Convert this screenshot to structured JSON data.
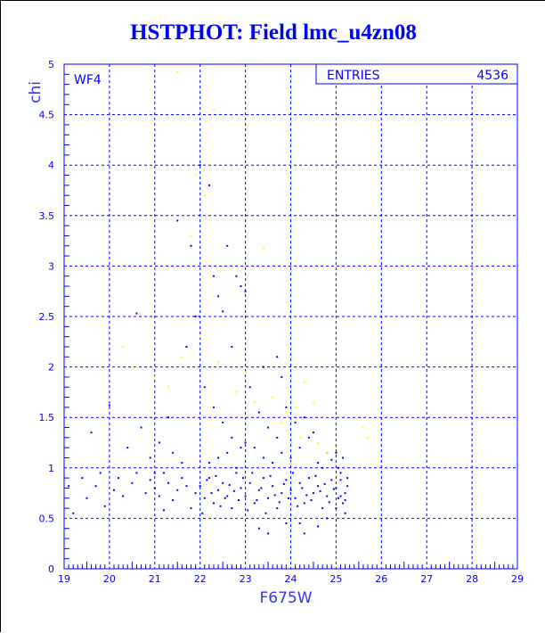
{
  "chart_data": {
    "type": "scatter",
    "title": "HSTPHOT: Field lmc_u4zn08",
    "xlabel": "F675W",
    "ylabel": "chi",
    "xlim": [
      19,
      29
    ],
    "ylim": [
      0,
      5
    ],
    "x_ticks": [
      "19",
      "20",
      "21",
      "22",
      "23",
      "24",
      "25",
      "26",
      "27",
      "28",
      "29"
    ],
    "y_ticks": [
      "0",
      "0.5",
      "1",
      "1.5",
      "2",
      "2.5",
      "3",
      "3.5",
      "4",
      "4.5",
      "5"
    ],
    "grid": true,
    "annotation": "WF4",
    "stats_box": {
      "label": "ENTRIES",
      "value": "4536"
    },
    "colors": {
      "main": "#0000ff",
      "highlight": "#ffff00"
    },
    "series": [
      {
        "color": "#0000ff",
        "points": [
          [
            19.1,
            0.82
          ],
          [
            19.2,
            0.55
          ],
          [
            19.4,
            0.9
          ],
          [
            19.5,
            0.7
          ],
          [
            19.6,
            1.35
          ],
          [
            19.7,
            0.82
          ],
          [
            19.8,
            0.95
          ],
          [
            19.9,
            0.62
          ],
          [
            20.0,
            1.62
          ],
          [
            20.1,
            0.78
          ],
          [
            20.2,
            0.9
          ],
          [
            20.3,
            0.72
          ],
          [
            20.4,
            1.2
          ],
          [
            20.5,
            0.85
          ],
          [
            20.6,
            0.95
          ],
          [
            20.7,
            1.4
          ],
          [
            20.8,
            0.75
          ],
          [
            20.9,
            0.88
          ],
          [
            20.6,
            2.53
          ],
          [
            20.9,
            1.1
          ],
          [
            21.0,
            0.8
          ],
          [
            21.1,
            0.72
          ],
          [
            21.2,
            0.95
          ],
          [
            21.3,
            0.85
          ],
          [
            21.4,
            0.68
          ],
          [
            21.5,
            0.78
          ],
          [
            21.6,
            0.9
          ],
          [
            21.7,
            0.82
          ],
          [
            21.8,
            0.6
          ],
          [
            21.9,
            0.75
          ],
          [
            21.1,
            1.25
          ],
          [
            21.3,
            1.5
          ],
          [
            21.5,
            3.45
          ],
          [
            21.7,
            2.2
          ],
          [
            21.8,
            3.2
          ],
          [
            21.9,
            2.5
          ],
          [
            21.2,
            0.58
          ],
          [
            21.6,
            1.05
          ],
          [
            21.4,
            1.15
          ],
          [
            21.0,
            0.95
          ],
          [
            22.0,
            4.0
          ],
          [
            22.2,
            3.8
          ],
          [
            22.3,
            2.9
          ],
          [
            22.4,
            2.7
          ],
          [
            22.5,
            2.55
          ],
          [
            22.6,
            3.2
          ],
          [
            22.7,
            2.2
          ],
          [
            22.8,
            2.9
          ],
          [
            22.9,
            2.8
          ],
          [
            23.0,
            2.75
          ],
          [
            22.1,
            1.8
          ],
          [
            22.3,
            1.6
          ],
          [
            22.5,
            1.45
          ],
          [
            22.7,
            1.3
          ],
          [
            22.9,
            1.2
          ],
          [
            22.2,
            1.05
          ],
          [
            22.4,
            1.1
          ],
          [
            22.6,
            1.15
          ],
          [
            22.8,
            1.0
          ],
          [
            23.0,
            1.25
          ],
          [
            22.0,
            0.82
          ],
          [
            22.1,
            0.7
          ],
          [
            22.2,
            0.9
          ],
          [
            22.3,
            0.65
          ],
          [
            22.4,
            0.78
          ],
          [
            22.5,
            0.85
          ],
          [
            22.6,
            0.72
          ],
          [
            22.7,
            0.6
          ],
          [
            22.8,
            0.95
          ],
          [
            22.9,
            0.8
          ],
          [
            22.05,
            0.55
          ],
          [
            22.15,
            0.88
          ],
          [
            22.25,
            0.75
          ],
          [
            22.35,
            0.92
          ],
          [
            22.45,
            0.62
          ],
          [
            22.55,
            0.7
          ],
          [
            22.65,
            0.83
          ],
          [
            22.75,
            0.77
          ],
          [
            22.85,
            0.68
          ],
          [
            22.95,
            0.9
          ],
          [
            23.0,
            0.72
          ],
          [
            23.1,
            0.85
          ],
          [
            23.2,
            0.65
          ],
          [
            23.3,
            0.78
          ],
          [
            23.4,
            0.9
          ],
          [
            23.5,
            0.7
          ],
          [
            23.6,
            0.82
          ],
          [
            23.7,
            0.6
          ],
          [
            23.8,
            0.75
          ],
          [
            23.9,
            0.88
          ],
          [
            23.05,
            0.58
          ],
          [
            23.15,
            0.95
          ],
          [
            23.25,
            0.68
          ],
          [
            23.35,
            0.8
          ],
          [
            23.45,
            0.55
          ],
          [
            23.55,
            0.92
          ],
          [
            23.65,
            0.73
          ],
          [
            23.75,
            0.66
          ],
          [
            23.85,
            0.84
          ],
          [
            23.95,
            0.7
          ],
          [
            23.1,
            1.8
          ],
          [
            23.3,
            1.55
          ],
          [
            23.5,
            1.4
          ],
          [
            23.7,
            1.3
          ],
          [
            23.9,
            1.6
          ],
          [
            23.2,
            1.2
          ],
          [
            23.4,
            1.1
          ],
          [
            23.6,
            1.05
          ],
          [
            23.8,
            1.15
          ],
          [
            23.3,
            0.4
          ],
          [
            23.5,
            0.35
          ],
          [
            23.9,
            0.45
          ],
          [
            23.7,
            2.1
          ],
          [
            23.4,
            2.0
          ],
          [
            23.8,
            1.9
          ],
          [
            24.0,
            0.78
          ],
          [
            24.1,
            0.7
          ],
          [
            24.2,
            0.85
          ],
          [
            24.3,
            0.65
          ],
          [
            24.4,
            0.9
          ],
          [
            24.5,
            0.75
          ],
          [
            24.6,
            0.82
          ],
          [
            24.7,
            0.6
          ],
          [
            24.8,
            0.72
          ],
          [
            24.9,
            0.88
          ],
          [
            24.05,
            0.95
          ],
          [
            24.15,
            0.62
          ],
          [
            24.25,
            0.8
          ],
          [
            24.35,
            0.73
          ],
          [
            24.45,
            0.68
          ],
          [
            24.55,
            0.92
          ],
          [
            24.65,
            0.77
          ],
          [
            24.75,
            0.84
          ],
          [
            24.85,
            0.66
          ],
          [
            24.95,
            0.79
          ],
          [
            24.0,
            1.1
          ],
          [
            24.2,
            1.2
          ],
          [
            24.4,
            1.3
          ],
          [
            24.6,
            1.05
          ],
          [
            24.8,
            1.15
          ],
          [
            24.1,
            1.45
          ],
          [
            24.3,
            1.5
          ],
          [
            24.5,
            1.35
          ],
          [
            24.7,
            1.0
          ],
          [
            24.9,
            1.08
          ],
          [
            24.2,
            0.45
          ],
          [
            24.6,
            0.42
          ],
          [
            24.8,
            0.5
          ],
          [
            24.3,
            0.35
          ],
          [
            25.0,
            0.8
          ],
          [
            25.05,
            0.7
          ],
          [
            25.1,
            0.88
          ],
          [
            25.15,
            0.65
          ],
          [
            25.2,
            0.75
          ],
          [
            25.25,
            0.82
          ],
          [
            25.0,
            0.6
          ],
          [
            25.1,
            0.95
          ],
          [
            25.2,
            0.55
          ],
          [
            25.25,
            0.9
          ],
          [
            25.05,
            1.0
          ],
          [
            25.15,
            1.1
          ],
          [
            25.0,
            1.15
          ],
          [
            25.2,
            0.68
          ],
          [
            25.1,
            0.72
          ]
        ]
      },
      {
        "color": "#ffff00",
        "points": [
          [
            21.5,
            4.92
          ],
          [
            22.3,
            4.55
          ],
          [
            21.9,
            3.9
          ],
          [
            22.1,
            3.7
          ],
          [
            21.8,
            3.3
          ],
          [
            22.5,
            3.0
          ],
          [
            23.4,
            3.18
          ],
          [
            20.3,
            2.2
          ],
          [
            20.6,
            2.0
          ],
          [
            21.0,
            1.9
          ],
          [
            21.3,
            1.8
          ],
          [
            21.6,
            2.1
          ],
          [
            22.0,
            2.3
          ],
          [
            22.4,
            2.05
          ],
          [
            22.8,
            1.75
          ],
          [
            23.0,
            1.95
          ],
          [
            23.2,
            1.65
          ],
          [
            23.6,
            1.7
          ],
          [
            23.9,
            1.55
          ],
          [
            24.1,
            1.6
          ],
          [
            24.3,
            1.85
          ],
          [
            24.5,
            1.65
          ],
          [
            24.2,
            1.3
          ],
          [
            24.6,
            1.25
          ],
          [
            24.8,
            1.15
          ],
          [
            25.0,
            1.2
          ],
          [
            25.6,
            1.4
          ],
          [
            25.7,
            1.3
          ],
          [
            24.0,
            1.05
          ],
          [
            23.8,
            1.45
          ]
        ]
      }
    ]
  }
}
